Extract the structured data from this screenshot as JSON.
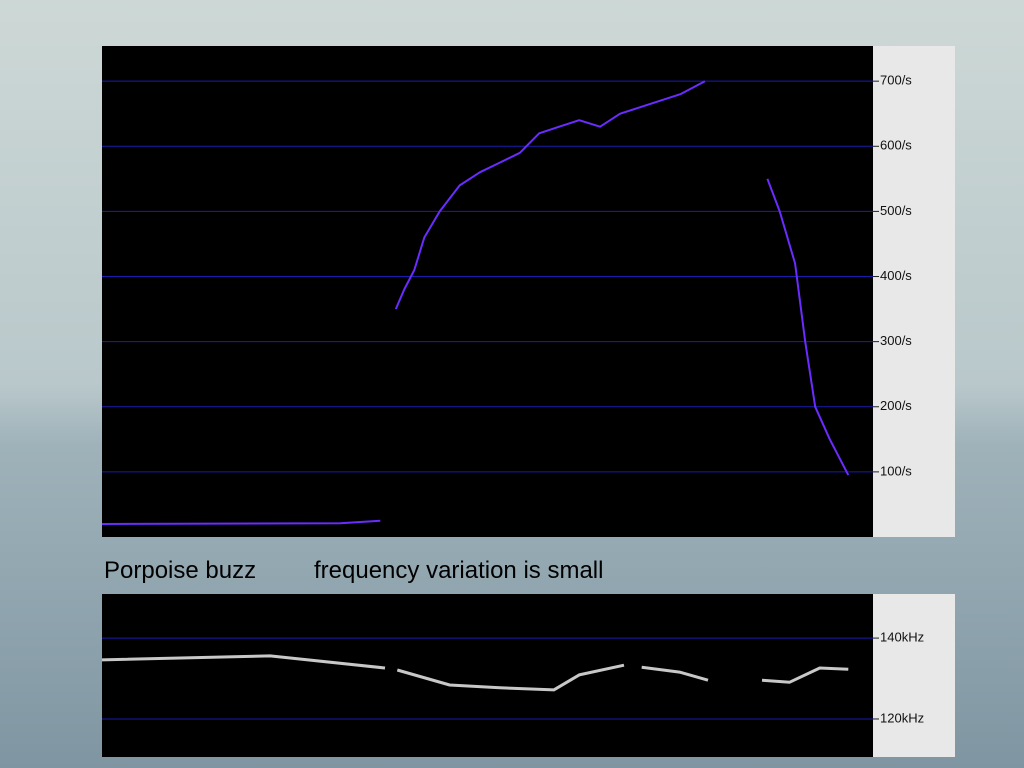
{
  "caption": [
    "Porpoise buzz",
    "frequency variation is small"
  ],
  "chart_data": [
    {
      "type": "line",
      "x": [
        0,
        30.9,
        36.1,
        37,
        38.1,
        39.2,
        40.5,
        41.8,
        43.8,
        46.4,
        49.0,
        51.6,
        54.2,
        56.7,
        59.3,
        61.9,
        64.6,
        67.2,
        69.8,
        72.4,
        75.0,
        78.2,
        80,
        86.3,
        87.9,
        89.9,
        91.2,
        92.5,
        94.4,
        96.8
      ],
      "series": [
        {
          "color": "#6a2cff",
          "values": [
            20,
            21,
            25,
            null,
            350,
            380,
            410,
            460,
            500,
            540,
            560,
            575,
            590,
            620,
            630,
            640,
            630,
            650,
            660,
            670,
            680,
            700,
            null,
            550,
            500,
            420,
            300,
            200,
            150,
            95
          ]
        }
      ],
      "xlim": [
        0,
        100
      ],
      "ylim": [
        0,
        754
      ],
      "yticks": [
        {
          "value": 100,
          "label": "100/s"
        },
        {
          "value": 200,
          "label": "200/s"
        },
        {
          "value": 300,
          "label": "300/s"
        },
        {
          "value": 400,
          "label": "400/s"
        },
        {
          "value": 500,
          "label": "500/s"
        },
        {
          "value": 600,
          "label": "600/s"
        },
        {
          "value": 700,
          "label": "700/s"
        }
      ],
      "grid": true
    },
    {
      "type": "line",
      "x": [
        0,
        21.8,
        36.7,
        37.5,
        38.3,
        45.1,
        51.6,
        58.6,
        61.9,
        67.7,
        68.5,
        70.0,
        74.9,
        78.6,
        80,
        85.6,
        89.2,
        93.1,
        96.8
      ],
      "series": [
        {
          "color": "#c8c8c8",
          "values": [
            134.6,
            135.6,
            132.6,
            null,
            132.1,
            128.4,
            127.7,
            127.2,
            130.9,
            133.3,
            null,
            132.8,
            131.6,
            129.6,
            null,
            129.6,
            129.1,
            132.6,
            132.3
          ]
        }
      ],
      "xlim": [
        0,
        100
      ],
      "ylim": [
        110.6,
        150.9
      ],
      "yticks": [
        {
          "value": 120,
          "label": "120kHz"
        },
        {
          "value": 140,
          "label": "140kHz"
        }
      ],
      "grid": true
    }
  ]
}
